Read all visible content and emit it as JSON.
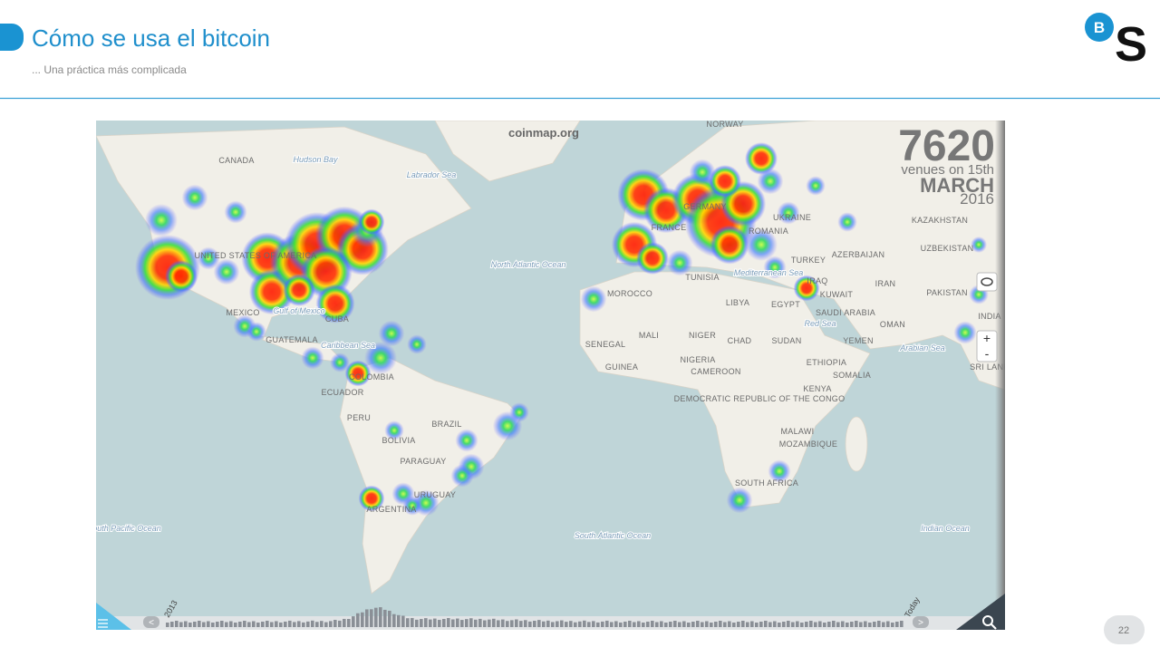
{
  "header": {
    "title": "Cómo se usa el bitcoin",
    "subtitle": "... Una práctica más complicada",
    "logo": [
      "B",
      "S"
    ]
  },
  "map": {
    "source": "coinmap.org",
    "count": 7620,
    "caption": [
      "venues on 15th",
      "MARCH",
      "2016"
    ],
    "labels": [
      "CANADA",
      "Hudson Bay",
      "Labrador Sea",
      "UNITED STATES OF AMERICA",
      "MEXICO",
      "Gulf of Mexico",
      "CUBA",
      "GUATEMALA",
      "Caribbean Sea",
      "COLOMBIA",
      "ECUADOR",
      "PERU",
      "BRAZIL",
      "BOLIVIA",
      "PARAGUAY",
      "URUGUAY",
      "ARGENTINA",
      "North Atlantic Ocean",
      "South Atlantic Ocean",
      "South Pacific Ocean",
      "MOROCCO",
      "MALI",
      "NIGER",
      "CHAD",
      "SUDAN",
      "LIBYA",
      "EGYPT",
      "SENEGAL",
      "GUINEA",
      "NIGERIA",
      "CAMEROON",
      "ETHIOPIA",
      "KENYA",
      "SOMALIA",
      "DEMOCRATIC REPUBLIC OF THE CONGO",
      "MALAWI",
      "MOZAMBIQUE",
      "SOUTH AFRICA",
      "Indian Ocean",
      "Arabian Sea",
      "Red Sea",
      "Mediterranean Sea",
      "SAUDI ARABIA",
      "YEMEN",
      "OMAN",
      "IRAQ",
      "IRAN",
      "KUWAIT",
      "TURKEY",
      "UKRAINE",
      "KAZAKHSTAN",
      "UZBEKISTAN",
      "PAKISTAN",
      "INDIA",
      "SRI LANKA",
      "NORWAY",
      "GERMANY",
      "FRANCE",
      "ROMANIA",
      "TUNISIA",
      "AZERBAIJAN"
    ],
    "timeline": {
      "start": "2013",
      "end": "Today"
    }
  },
  "footer": {
    "page": "22"
  }
}
